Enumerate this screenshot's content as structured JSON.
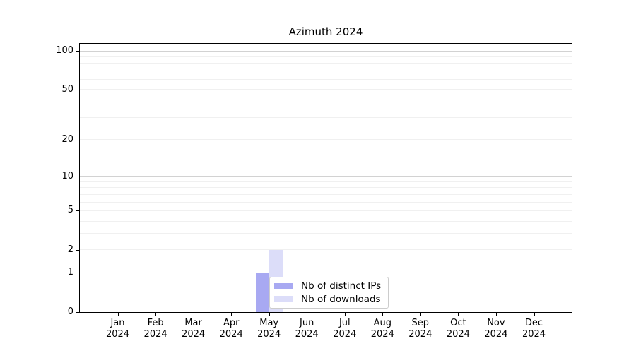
{
  "chart_data": {
    "type": "bar",
    "title": "Azimuth 2024",
    "x": {
      "categories": [
        "Jan",
        "Feb",
        "Mar",
        "Apr",
        "May",
        "Jun",
        "Jul",
        "Aug",
        "Sep",
        "Oct",
        "Nov",
        "Dec"
      ],
      "year": "2024"
    },
    "y": {
      "scale": "log1p",
      "lim": [
        0,
        113
      ],
      "tick_values": [
        0,
        1,
        2,
        5,
        10,
        20,
        50,
        100
      ],
      "tick_labels": [
        "0",
        "1",
        "2",
        "5",
        "10",
        "20",
        "50",
        "100"
      ],
      "major_grid_values": [
        1,
        10,
        100
      ],
      "minor_grid_values": [
        2,
        3,
        4,
        5,
        6,
        7,
        8,
        9,
        20,
        30,
        40,
        50,
        60,
        70,
        80,
        90
      ],
      "grid": true
    },
    "series": [
      {
        "name": "Nb of distinct IPs",
        "color": "#a8a9f2",
        "values": [
          0,
          0,
          0,
          0,
          1,
          0,
          0,
          0,
          0,
          0,
          0,
          0
        ]
      },
      {
        "name": "Nb of downloads",
        "color": "#dcddf9",
        "values": [
          0,
          0,
          0,
          0,
          2,
          0,
          0,
          0,
          0,
          0,
          0,
          0
        ]
      }
    ],
    "legend": {
      "position": "lower center"
    }
  },
  "colors": {
    "background": "#ffffff",
    "axis": "#000000",
    "major_grid": "#d2d2d2",
    "minor_grid": "#f0f0f0",
    "legend_border": "#cccccc",
    "legend_background": "#ffffff",
    "text": "#000000"
  }
}
